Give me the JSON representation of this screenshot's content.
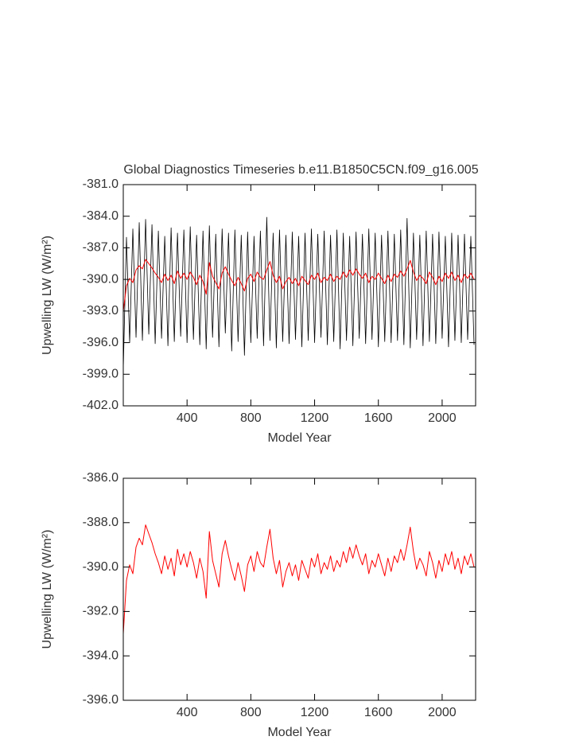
{
  "chart_data": [
    {
      "type": "line",
      "title": "Global Diagnostics Timeseries b.e11.B1850C5CN.f09_g16.005",
      "x_label": "Model Year",
      "y_label": "Upwelling LW (W/m²)",
      "xlim": [
        0,
        2210
      ],
      "xticks": [
        400,
        800,
        1200,
        1600,
        2000
      ],
      "ylim": [
        -402,
        -381
      ],
      "yticks": [
        {
          "value": -381,
          "label": "-381.0"
        },
        {
          "value": -384,
          "label": "-384.0"
        },
        {
          "value": -387,
          "label": "-387.0"
        },
        {
          "value": -390,
          "label": "-390.0"
        },
        {
          "value": -393,
          "label": "-393.0"
        },
        {
          "value": -396,
          "label": "-396.0"
        },
        {
          "value": -399,
          "label": "-399.0"
        },
        {
          "value": -402,
          "label": "-402.0"
        }
      ],
      "x": [
        0,
        20,
        40,
        60,
        80,
        100,
        120,
        140,
        160,
        180,
        200,
        220,
        240,
        260,
        280,
        300,
        320,
        340,
        360,
        380,
        400,
        420,
        440,
        460,
        480,
        500,
        520,
        540,
        560,
        580,
        600,
        620,
        640,
        660,
        680,
        700,
        720,
        740,
        760,
        780,
        800,
        820,
        840,
        860,
        880,
        900,
        920,
        940,
        960,
        980,
        1000,
        1020,
        1040,
        1060,
        1080,
        1100,
        1120,
        1140,
        1160,
        1180,
        1200,
        1220,
        1240,
        1260,
        1280,
        1300,
        1320,
        1340,
        1360,
        1380,
        1400,
        1420,
        1440,
        1460,
        1480,
        1500,
        1520,
        1540,
        1560,
        1580,
        1600,
        1620,
        1640,
        1660,
        1680,
        1700,
        1720,
        1740,
        1760,
        1780,
        1800,
        1820,
        1840,
        1860,
        1880,
        1900,
        1920,
        1940,
        1960,
        1980,
        2000,
        2020,
        2040,
        2060,
        2080,
        2100,
        2120,
        2140,
        2160,
        2180,
        2200
      ],
      "series": [
        {
          "color": "#000000",
          "values": [
            -398.5,
            -386.0,
            -396.0,
            -385.2,
            -395.5,
            -384.6,
            -395.8,
            -384.3,
            -395.2,
            -384.8,
            -396.1,
            -385.4,
            -395.6,
            -385.9,
            -396.3,
            -385.1,
            -395.9,
            -385.6,
            -395.4,
            -385.3,
            -396.0,
            -385.0,
            -395.7,
            -385.8,
            -396.2,
            -385.4,
            -396.6,
            -384.9,
            -395.5,
            -385.7,
            -396.4,
            -385.2,
            -395.1,
            -385.6,
            -396.8,
            -385.3,
            -395.9,
            -385.8,
            -397.2,
            -385.5,
            -396.0,
            -385.9,
            -395.6,
            -385.4,
            -396.3,
            -384.1,
            -395.8,
            -385.6,
            -396.5,
            -385.3,
            -395.9,
            -385.8,
            -396.1,
            -385.5,
            -395.7,
            -385.9,
            -396.4,
            -385.6,
            -395.8,
            -385.2,
            -396.0,
            -385.7,
            -395.5,
            -385.4,
            -396.2,
            -385.8,
            -395.9,
            -385.3,
            -396.6,
            -385.6,
            -395.8,
            -385.9,
            -396.3,
            -385.5,
            -395.6,
            -385.7,
            -396.1,
            -385.2,
            -395.7,
            -385.6,
            -396.4,
            -385.8,
            -395.9,
            -385.4,
            -396.0,
            -385.7,
            -395.8,
            -385.3,
            -396.2,
            -384.2,
            -396.5,
            -385.6,
            -395.7,
            -385.8,
            -396.3,
            -385.4,
            -395.9,
            -385.7,
            -396.1,
            -385.5,
            -395.6,
            -385.9,
            -396.4,
            -385.6,
            -395.8,
            -385.8,
            -396.0,
            -385.7,
            -395.7,
            -385.9,
            -396.2
          ]
        },
        {
          "color": "#ff0000",
          "values": [
            -393.0,
            -390.6,
            -389.9,
            -390.3,
            -389.1,
            -388.7,
            -389.0,
            -388.1,
            -388.5,
            -388.9,
            -389.4,
            -389.8,
            -390.3,
            -389.5,
            -390.1,
            -389.6,
            -390.4,
            -389.2,
            -389.9,
            -389.4,
            -390.0,
            -389.3,
            -389.8,
            -390.5,
            -389.6,
            -390.2,
            -391.4,
            -388.4,
            -389.7,
            -390.3,
            -390.9,
            -389.4,
            -388.8,
            -389.5,
            -390.1,
            -390.6,
            -389.8,
            -390.4,
            -391.1,
            -389.9,
            -389.5,
            -390.2,
            -389.3,
            -389.8,
            -390.0,
            -389.1,
            -388.3,
            -389.6,
            -390.3,
            -389.7,
            -390.9,
            -390.2,
            -389.8,
            -390.4,
            -389.9,
            -390.6,
            -389.7,
            -390.1,
            -390.5,
            -389.6,
            -390.0,
            -389.4,
            -390.3,
            -389.8,
            -390.1,
            -389.5,
            -390.2,
            -389.7,
            -390.0,
            -389.3,
            -389.8,
            -389.1,
            -389.6,
            -389.0,
            -389.5,
            -389.9,
            -389.4,
            -390.3,
            -389.7,
            -390.0,
            -389.4,
            -389.9,
            -390.4,
            -389.6,
            -390.2,
            -389.5,
            -389.8,
            -389.2,
            -389.7,
            -389.0,
            -388.2,
            -389.3,
            -390.1,
            -389.6,
            -389.9,
            -390.4,
            -389.3,
            -389.8,
            -390.5,
            -389.7,
            -390.2,
            -389.4,
            -389.9,
            -389.3,
            -390.1,
            -389.6,
            -390.3,
            -389.5,
            -389.9,
            -389.4,
            -390.0
          ]
        }
      ]
    },
    {
      "type": "line",
      "x_label": "Model Year",
      "y_label": "Upwelling LW (W/m²)",
      "xlim": [
        0,
        2210
      ],
      "xticks": [
        400,
        800,
        1200,
        1600,
        2000
      ],
      "ylim": [
        -396,
        -386
      ],
      "yticks": [
        {
          "value": -386,
          "label": "-386.0"
        },
        {
          "value": -388,
          "label": "-388.0"
        },
        {
          "value": -390,
          "label": "-390.0"
        },
        {
          "value": -392,
          "label": "-392.0"
        },
        {
          "value": -394,
          "label": "-394.0"
        },
        {
          "value": -396,
          "label": "-396.0"
        }
      ],
      "x": [
        0,
        20,
        40,
        60,
        80,
        100,
        120,
        140,
        160,
        180,
        200,
        220,
        240,
        260,
        280,
        300,
        320,
        340,
        360,
        380,
        400,
        420,
        440,
        460,
        480,
        500,
        520,
        540,
        560,
        580,
        600,
        620,
        640,
        660,
        680,
        700,
        720,
        740,
        760,
        780,
        800,
        820,
        840,
        860,
        880,
        900,
        920,
        940,
        960,
        980,
        1000,
        1020,
        1040,
        1060,
        1080,
        1100,
        1120,
        1140,
        1160,
        1180,
        1200,
        1220,
        1240,
        1260,
        1280,
        1300,
        1320,
        1340,
        1360,
        1380,
        1400,
        1420,
        1440,
        1460,
        1480,
        1500,
        1520,
        1540,
        1560,
        1580,
        1600,
        1620,
        1640,
        1660,
        1680,
        1700,
        1720,
        1740,
        1760,
        1780,
        1800,
        1820,
        1840,
        1860,
        1880,
        1900,
        1920,
        1940,
        1960,
        1980,
        2000,
        2020,
        2040,
        2060,
        2080,
        2100,
        2120,
        2140,
        2160,
        2180,
        2200
      ],
      "series": [
        {
          "color": "#ff0000",
          "values": [
            -393.0,
            -390.6,
            -389.9,
            -390.3,
            -389.1,
            -388.7,
            -389.0,
            -388.1,
            -388.5,
            -388.9,
            -389.4,
            -389.8,
            -390.3,
            -389.5,
            -390.1,
            -389.6,
            -390.4,
            -389.2,
            -389.9,
            -389.4,
            -390.0,
            -389.3,
            -389.8,
            -390.5,
            -389.6,
            -390.2,
            -391.4,
            -388.4,
            -389.7,
            -390.3,
            -390.9,
            -389.4,
            -388.8,
            -389.5,
            -390.1,
            -390.6,
            -389.8,
            -390.4,
            -391.1,
            -389.9,
            -389.5,
            -390.2,
            -389.3,
            -389.8,
            -390.0,
            -389.1,
            -388.3,
            -389.6,
            -390.3,
            -389.7,
            -390.9,
            -390.2,
            -389.8,
            -390.4,
            -389.9,
            -390.6,
            -389.7,
            -390.1,
            -390.5,
            -389.6,
            -390.0,
            -389.4,
            -390.3,
            -389.8,
            -390.1,
            -389.5,
            -390.2,
            -389.7,
            -390.0,
            -389.3,
            -389.8,
            -389.1,
            -389.6,
            -389.0,
            -389.5,
            -389.9,
            -389.4,
            -390.3,
            -389.7,
            -390.0,
            -389.4,
            -389.9,
            -390.4,
            -389.6,
            -390.2,
            -389.5,
            -389.8,
            -389.2,
            -389.7,
            -389.0,
            -388.2,
            -389.3,
            -390.1,
            -389.6,
            -389.9,
            -390.4,
            -389.3,
            -389.8,
            -390.5,
            -389.7,
            -390.2,
            -389.4,
            -389.9,
            -389.3,
            -390.1,
            -389.6,
            -390.3,
            -389.5,
            -389.9,
            -389.4,
            -390.0
          ]
        }
      ]
    }
  ]
}
